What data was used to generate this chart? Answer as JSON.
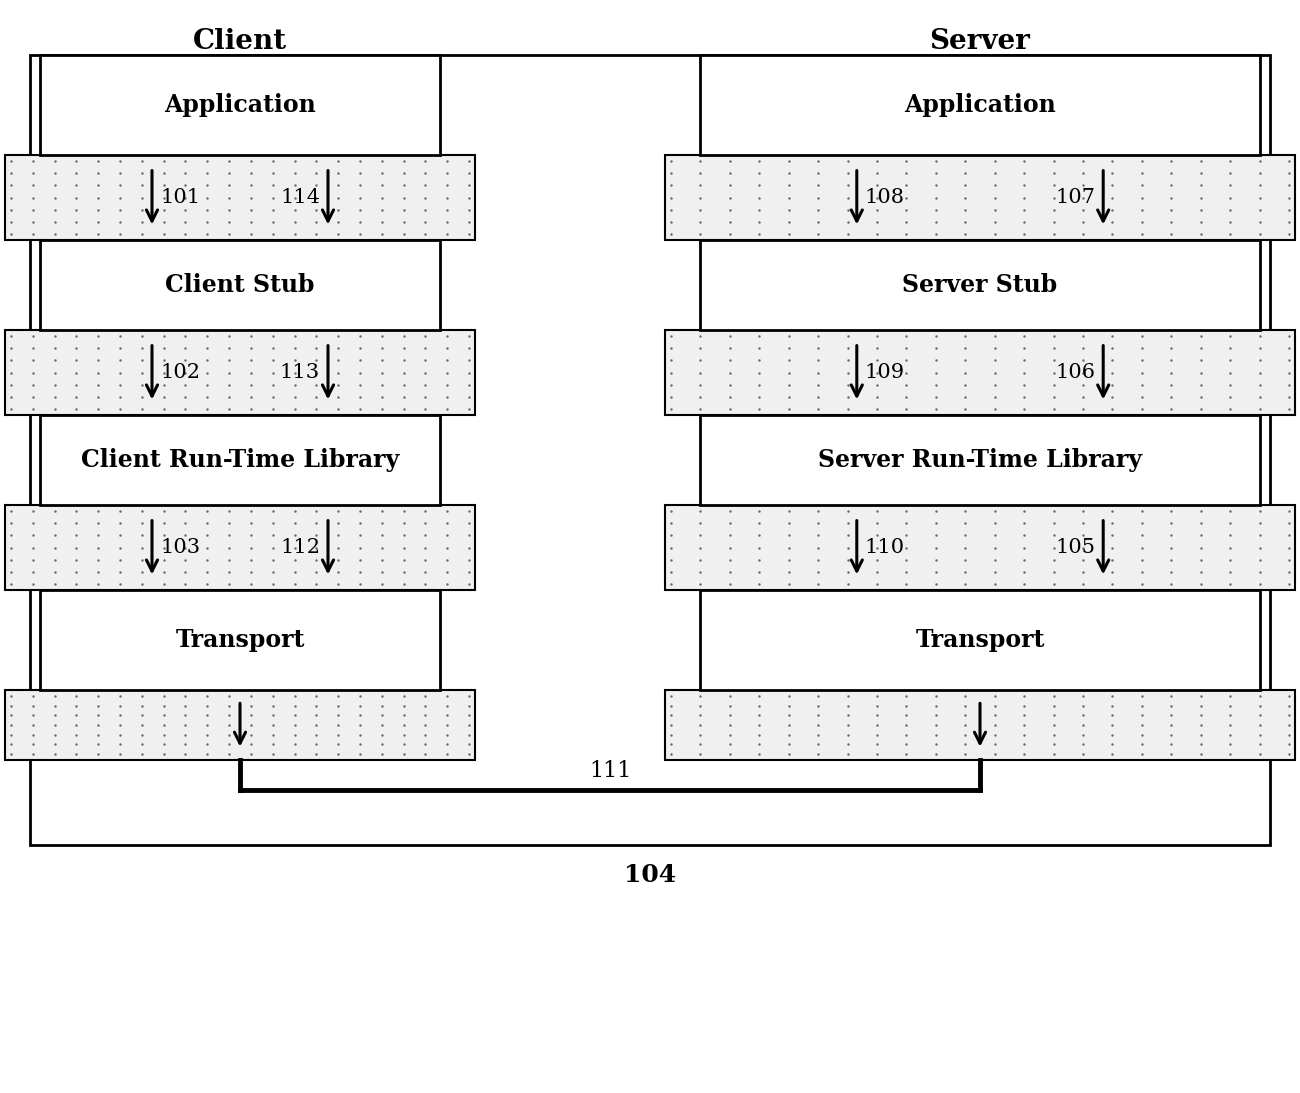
{
  "fig_width": 13.0,
  "fig_height": 10.93,
  "bg_color": "#ffffff",
  "title_client": "Client",
  "title_server": "Server",
  "client_layers": [
    "Application",
    "Client Stub",
    "Client Run-Time Library",
    "Transport"
  ],
  "server_layers": [
    "Application",
    "Server Stub",
    "Server Run-Time Library",
    "Transport"
  ],
  "label_pairs_client": [
    [
      "101",
      "114"
    ],
    [
      "102",
      "113"
    ],
    [
      "103",
      "112"
    ]
  ],
  "label_pairs_server": [
    [
      "108",
      "107"
    ],
    [
      "109",
      "106"
    ],
    [
      "110",
      "105"
    ]
  ],
  "bottom_label_111": "111",
  "bottom_label_104": "104",
  "font_size_title": 20,
  "font_size_layer": 17,
  "font_size_label": 15
}
